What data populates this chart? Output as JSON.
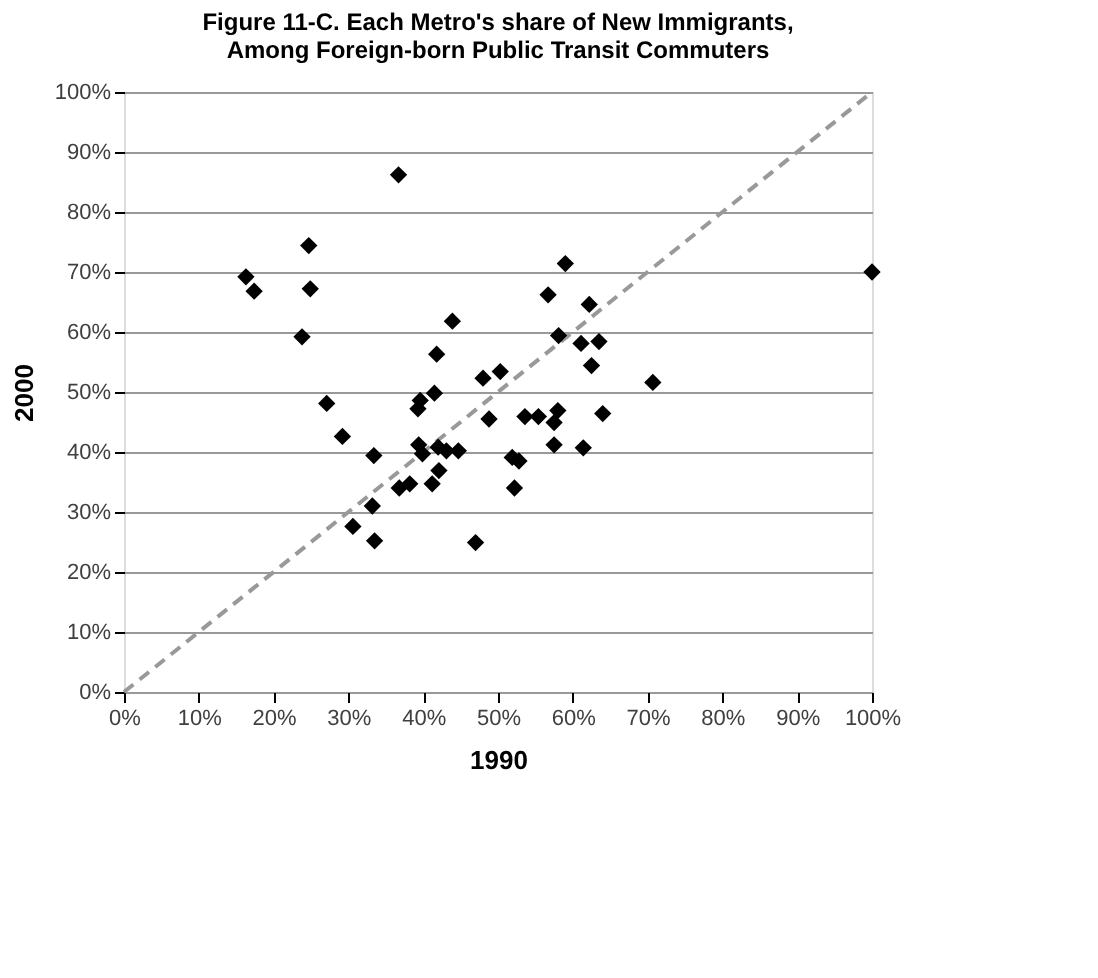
{
  "chart_data": {
    "type": "scatter",
    "title": "Figure 11-C. Each Metro's share of New Immigrants,\nAmong Foreign-born  Public Transit Commuters",
    "xlabel": "1990",
    "ylabel": "2000",
    "xlim": [
      0,
      100
    ],
    "ylim": [
      0,
      100
    ],
    "xticks": [
      {
        "value": 0,
        "label": "0%"
      },
      {
        "value": 10,
        "label": "10%"
      },
      {
        "value": 20,
        "label": "20%"
      },
      {
        "value": 30,
        "label": "30%"
      },
      {
        "value": 40,
        "label": "40%"
      },
      {
        "value": 50,
        "label": "50%"
      },
      {
        "value": 60,
        "label": "60%"
      },
      {
        "value": 70,
        "label": "70%"
      },
      {
        "value": 80,
        "label": "80%"
      },
      {
        "value": 90,
        "label": "90%"
      },
      {
        "value": 100,
        "label": "100%"
      }
    ],
    "yticks": [
      {
        "value": 0,
        "label": "0%"
      },
      {
        "value": 10,
        "label": "10%"
      },
      {
        "value": 20,
        "label": "20%"
      },
      {
        "value": 30,
        "label": "30%"
      },
      {
        "value": 40,
        "label": "40%"
      },
      {
        "value": 50,
        "label": "50%"
      },
      {
        "value": 60,
        "label": "60%"
      },
      {
        "value": 70,
        "label": "70%"
      },
      {
        "value": 80,
        "label": "80%"
      },
      {
        "value": 90,
        "label": "90%"
      },
      {
        "value": 100,
        "label": "100%"
      }
    ],
    "grid": "y",
    "marker": "diamond",
    "series": [
      {
        "color": "#000000",
        "x": [
          36.7,
          24.7,
          16.3,
          17.4,
          24.9,
          23.8,
          43.9,
          41.8,
          48.0,
          50.3,
          41.5,
          39.6,
          39.3,
          27.1,
          29.2,
          48.8,
          53.6,
          55.4,
          59.0,
          56.7,
          62.2,
          58.1,
          61.1,
          63.5,
          62.5,
          70.7,
          58.0,
          57.5,
          64.0,
          57.5,
          61.4,
          51.9,
          52.8,
          52.2,
          33.4,
          39.4,
          39.9,
          42.0,
          43.1,
          44.7,
          42.1,
          41.2,
          36.8,
          38.2,
          33.2,
          30.6,
          33.5,
          47.0,
          100
        ],
        "values": [
          86.2,
          74.4,
          69.2,
          66.8,
          67.2,
          59.2,
          61.8,
          56.3,
          52.3,
          53.4,
          49.8,
          48.6,
          47.2,
          48.1,
          42.6,
          45.5,
          45.9,
          45.9,
          71.4,
          66.2,
          64.6,
          59.4,
          58.1,
          58.4,
          54.4,
          51.6,
          46.9,
          44.9,
          46.4,
          41.2,
          40.7,
          39.1,
          38.5,
          34.0,
          39.4,
          41.2,
          39.7,
          40.8,
          40.2,
          40.2,
          36.9,
          34.7,
          34.0,
          34.7,
          31.0,
          27.6,
          25.2,
          24.9,
          70
        ]
      },
      {
        "type": "line",
        "marker": "none",
        "color": "#999999",
        "line_style": "dashed",
        "x": [
          0,
          100
        ],
        "values": [
          0,
          100
        ]
      }
    ]
  }
}
